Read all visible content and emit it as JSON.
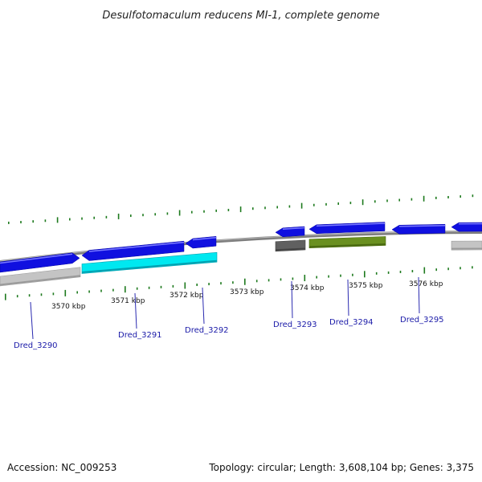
{
  "title": "Desulfotomaculum reducens MI-1, complete genome",
  "footer": {
    "accession": "Accession: NC_009253",
    "summary": "Topology: circular; Length: 3,608,104 bp; Genes: 3,375"
  },
  "kbp_labels": [
    "3570 kbp",
    "3571 kbp",
    "3572 kbp",
    "3573 kbp",
    "3574 kbp",
    "3575 kbp",
    "3576 kbp"
  ],
  "gene_labels": [
    "Dred_3290",
    "Dred_3291",
    "Dred_3292",
    "Dred_3293",
    "Dred_3294",
    "Dred_3295"
  ],
  "colors": {
    "backbone": "#808080",
    "forward_blue": "#1010e0",
    "cyan": "#00e8f0",
    "light_gray": "#c4c4c4",
    "dark_gray": "#606060",
    "olive": "#6a9020",
    "tick_green": "#1e7a1e",
    "label_blue": "#1a1aa8"
  }
}
